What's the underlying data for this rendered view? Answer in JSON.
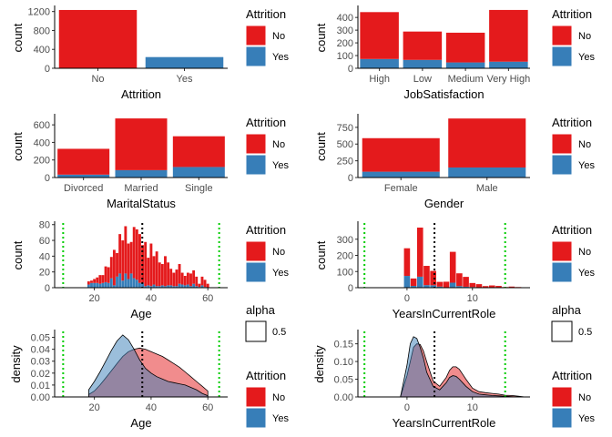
{
  "figure": {
    "background": "#ffffff",
    "fill_no": "#e41a1c",
    "fill_yes": "#377eb8",
    "density_no": "#e41a1c",
    "density_yes": "#377eb8",
    "mean_line": "#000000",
    "range_line": "#00cc00"
  },
  "legends": [
    {
      "title": "Attrition",
      "items": [
        "No",
        "Yes"
      ]
    },
    {
      "title": "Attrition",
      "items": [
        "No",
        "Yes"
      ]
    },
    {
      "title": "Attrition",
      "items": [
        "No",
        "Yes"
      ]
    },
    {
      "title": "Attrition",
      "items": [
        "No",
        "Yes"
      ]
    },
    {
      "title": "Attrition",
      "items": [
        "No",
        "Yes"
      ]
    },
    {
      "title": "alpha",
      "items": [
        "0.5"
      ]
    },
    {
      "title": "Attrition",
      "items": [
        "No",
        "Yes"
      ]
    },
    {
      "title": "alpha",
      "items": [
        "0.5"
      ]
    },
    {
      "title": "Attrition",
      "items": [
        "No",
        "Yes"
      ]
    },
    {
      "title": "Attrition",
      "items": [
        "No",
        "Yes"
      ]
    }
  ],
  "chart_data": [
    {
      "type": "bar",
      "xlabel": "Attrition",
      "ylabel": "count",
      "categories": [
        "No",
        "Yes"
      ],
      "series": [
        {
          "name": "No",
          "values": [
            1233,
            0
          ]
        },
        {
          "name": "Yes",
          "values": [
            0,
            237
          ]
        }
      ],
      "yticks": [
        0,
        400,
        800,
        1200
      ],
      "ylim": [
        0,
        1290
      ]
    },
    {
      "type": "bar",
      "xlabel": "JobSatisfaction",
      "ylabel": "count",
      "categories": [
        "High",
        "Low",
        "Medium",
        "Very High"
      ],
      "series": [
        {
          "name": "No",
          "values": [
            369,
            223,
            234,
            407
          ]
        },
        {
          "name": "Yes",
          "values": [
            73,
            66,
            46,
            52
          ]
        }
      ],
      "yticks": [
        0,
        100,
        200,
        300,
        400
      ],
      "ylim": [
        0,
        480
      ]
    },
    {
      "type": "bar",
      "xlabel": "MaritalStatus",
      "ylabel": "count",
      "categories": [
        "Divorced",
        "Married",
        "Single"
      ],
      "series": [
        {
          "name": "No",
          "values": [
            294,
            589,
            350
          ]
        },
        {
          "name": "Yes",
          "values": [
            33,
            84,
            120
          ]
        }
      ],
      "yticks": [
        0,
        200,
        400,
        600
      ],
      "ylim": [
        0,
        705
      ]
    },
    {
      "type": "bar",
      "xlabel": "Gender",
      "ylabel": "count",
      "categories": [
        "Female",
        "Male"
      ],
      "series": [
        {
          "name": "No",
          "values": [
            501,
            732
          ]
        },
        {
          "name": "Yes",
          "values": [
            87,
            150
          ]
        }
      ],
      "yticks": [
        0,
        250,
        500,
        750
      ],
      "ylim": [
        0,
        925
      ]
    },
    {
      "type": "bar",
      "xlabel": "Age",
      "ylabel": "count",
      "x": [
        18,
        19,
        20,
        21,
        22,
        23,
        24,
        25,
        26,
        27,
        28,
        29,
        30,
        31,
        32,
        33,
        34,
        35,
        36,
        37,
        38,
        39,
        40,
        41,
        42,
        43,
        44,
        45,
        46,
        47,
        48,
        49,
        50,
        51,
        52,
        53,
        54,
        55,
        56,
        57,
        58,
        59,
        60
      ],
      "series": [
        {
          "name": "No",
          "values": [
            4,
            3,
            5,
            7,
            11,
            10,
            20,
            20,
            27,
            45,
            30,
            50,
            51,
            60,
            45,
            40,
            65,
            64,
            62,
            48,
            56,
            35,
            54,
            36,
            44,
            30,
            27,
            38,
            29,
            21,
            17,
            21,
            25,
            15,
            12,
            15,
            16,
            17,
            12,
            4,
            11,
            9,
            5
          ]
        },
        {
          "name": "Yes",
          "values": [
            4,
            6,
            6,
            6,
            5,
            6,
            7,
            6,
            12,
            3,
            14,
            18,
            9,
            18,
            11,
            18,
            12,
            10,
            6,
            6,
            2,
            3,
            2,
            4,
            2,
            2,
            3,
            2,
            3,
            3,
            2,
            2,
            5,
            4,
            3,
            4,
            2,
            5,
            2,
            1,
            3,
            1,
            0
          ]
        }
      ],
      "mean": 36.9,
      "range_lines": [
        9,
        64
      ],
      "xticks": [
        20,
        40,
        60
      ],
      "xlim": [
        6,
        67
      ],
      "yticks": [
        0,
        20,
        40,
        60,
        80
      ],
      "ylim": [
        0,
        82
      ]
    },
    {
      "type": "bar",
      "xlabel": "YearsInCurrentRole",
      "ylabel": "count",
      "x": [
        0,
        1,
        2,
        3,
        4,
        5,
        6,
        7,
        8,
        9,
        10,
        11,
        12,
        13,
        14,
        15,
        16,
        17,
        18
      ],
      "series": [
        {
          "name": "No",
          "values": [
            171,
            46,
            304,
            119,
            89,
            29,
            35,
            191,
            79,
            61,
            25,
            22,
            10,
            13,
            9,
            4,
            7,
            4,
            2
          ]
        },
        {
          "name": "Yes",
          "values": [
            73,
            11,
            68,
            16,
            15,
            7,
            2,
            31,
            10,
            6,
            4,
            0,
            0,
            1,
            2,
            0,
            0,
            0,
            0
          ]
        }
      ],
      "mean": 4.2,
      "range_lines": [
        -6.5,
        15
      ],
      "xticks": [
        0,
        10
      ],
      "xlim": [
        -7.5,
        18.8
      ],
      "yticks": [
        0,
        100,
        200,
        300
      ],
      "ylim": [
        0,
        400
      ]
    },
    {
      "type": "area",
      "xlabel": "Age",
      "ylabel": "density",
      "x": [
        18,
        20,
        22,
        24,
        26,
        28,
        30,
        32,
        34,
        36,
        38,
        40,
        42,
        44,
        46,
        48,
        50,
        52,
        54,
        56,
        58,
        60
      ],
      "series": [
        {
          "name": "No",
          "values": [
            0.002,
            0.005,
            0.01,
            0.016,
            0.022,
            0.028,
            0.034,
            0.038,
            0.04,
            0.041,
            0.04,
            0.038,
            0.036,
            0.034,
            0.031,
            0.028,
            0.025,
            0.021,
            0.017,
            0.013,
            0.009,
            0.005
          ]
        },
        {
          "name": "Yes",
          "values": [
            0.006,
            0.013,
            0.021,
            0.03,
            0.039,
            0.047,
            0.052,
            0.048,
            0.04,
            0.031,
            0.024,
            0.02,
            0.017,
            0.015,
            0.013,
            0.012,
            0.011,
            0.01,
            0.008,
            0.006,
            0.003,
            0.001
          ]
        }
      ],
      "mean": 36.9,
      "range_lines": [
        9,
        64
      ],
      "xticks": [
        20,
        40,
        60
      ],
      "xlim": [
        6,
        67
      ],
      "yticks": [
        0.0,
        0.01,
        0.02,
        0.03,
        0.04,
        0.05
      ],
      "ytick_labels": [
        "0.00",
        "0.01",
        "0.02",
        "0.03",
        "0.04",
        "0.05"
      ],
      "ylim": [
        0,
        0.055
      ]
    },
    {
      "type": "area",
      "xlabel": "YearsInCurrentRole",
      "ylabel": "density",
      "x": [
        -1,
        0,
        0.5,
        1,
        1.5,
        2,
        2.5,
        3,
        4,
        5,
        6,
        6.5,
        7,
        7.5,
        8,
        9,
        10,
        11,
        12,
        13,
        14,
        15,
        16,
        17,
        18
      ],
      "series": [
        {
          "name": "No",
          "values": [
            0.0,
            0.06,
            0.1,
            0.14,
            0.15,
            0.148,
            0.13,
            0.1,
            0.045,
            0.03,
            0.055,
            0.075,
            0.085,
            0.085,
            0.078,
            0.05,
            0.025,
            0.015,
            0.012,
            0.01,
            0.008,
            0.005,
            0.004,
            0.002,
            0.0
          ]
        },
        {
          "name": "Yes",
          "values": [
            0.0,
            0.09,
            0.15,
            0.17,
            0.165,
            0.14,
            0.11,
            0.07,
            0.03,
            0.02,
            0.04,
            0.055,
            0.06,
            0.058,
            0.05,
            0.03,
            0.015,
            0.008,
            0.006,
            0.004,
            0.003,
            0.002,
            0.001,
            0.0,
            0.0
          ]
        }
      ],
      "mean": 4.2,
      "range_lines": [
        -6.5,
        15
      ],
      "xticks": [
        0,
        10
      ],
      "xlim": [
        -7.5,
        18.8
      ],
      "yticks": [
        0.0,
        0.05,
        0.1,
        0.15
      ],
      "ytick_labels": [
        "0.00",
        "0.05",
        "0.10",
        "0.15"
      ],
      "ylim": [
        0,
        0.185
      ]
    }
  ]
}
